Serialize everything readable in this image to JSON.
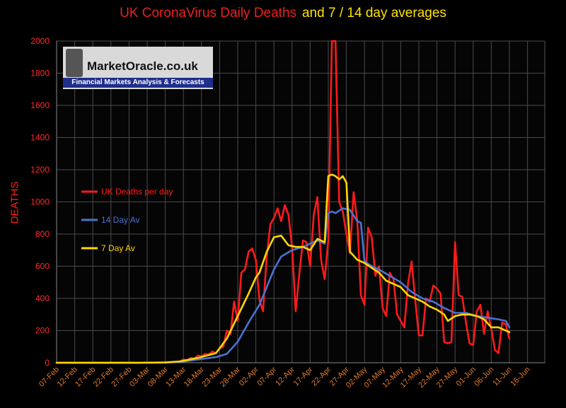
{
  "title": {
    "part1": "UK CoronaVirus Daily Deaths",
    "part2": "and 7 / 14 day averages"
  },
  "logo": {
    "name": "MarketOracle.co.uk",
    "tagline": "Financial Markets Analysis & Forecasts"
  },
  "chart_data": {
    "type": "line",
    "title": "UK CoronaVirus Daily Deaths and 7 / 14 day averages",
    "ylabel": "DEATHS",
    "xlabel": "",
    "ylim": [
      0,
      2000
    ],
    "yticks": [
      0,
      200,
      400,
      600,
      800,
      1000,
      1200,
      1400,
      1600,
      1800,
      2000
    ],
    "x_tick_labels": [
      "07-Feb",
      "12-Feb",
      "17-Feb",
      "22-Feb",
      "27-Feb",
      "03-Mar",
      "08-Mar",
      "13-Mar",
      "18-Mar",
      "23-Mar",
      "28-Mar",
      "02-Apr",
      "07-Apr",
      "12-Apr",
      "17-Apr",
      "22-Apr",
      "27-Apr",
      "02-May",
      "07-May",
      "12-May",
      "17-May",
      "22-May",
      "27-May",
      "01-Jun",
      "06-Jun",
      "11-Jun",
      "16-Jun"
    ],
    "grid": true,
    "legend_placement": "left",
    "colors": {
      "daily": "#ff1a1a",
      "avg14": "#4a72d4",
      "avg7": "#ffd700",
      "axis_text": "#e07a2a",
      "ytick_text": "#ff2a2a"
    },
    "series": [
      {
        "name": "UK Deaths per day",
        "color": "#ff1a1a",
        "points": [
          [
            "07-Feb",
            0
          ],
          [
            "10-Feb",
            0
          ],
          [
            "15-Feb",
            0
          ],
          [
            "20-Feb",
            0
          ],
          [
            "25-Feb",
            0
          ],
          [
            "01-Mar",
            0
          ],
          [
            "05-Mar",
            0
          ],
          [
            "08-Mar",
            1
          ],
          [
            "10-Mar",
            3
          ],
          [
            "12-Mar",
            8
          ],
          [
            "13-Mar",
            20
          ],
          [
            "14-Mar",
            12
          ],
          [
            "15-Mar",
            30
          ],
          [
            "16-Mar",
            25
          ],
          [
            "17-Mar",
            45
          ],
          [
            "18-Mar",
            40
          ],
          [
            "19-Mar",
            55
          ],
          [
            "20-Mar",
            50
          ],
          [
            "21-Mar",
            70
          ],
          [
            "22-Mar",
            60
          ],
          [
            "23-Mar",
            90
          ],
          [
            "24-Mar",
            100
          ],
          [
            "25-Mar",
            200
          ],
          [
            "26-Mar",
            180
          ],
          [
            "27-Mar",
            380
          ],
          [
            "28-Mar",
            260
          ],
          [
            "29-Mar",
            560
          ],
          [
            "30-Mar",
            580
          ],
          [
            "31-Mar",
            690
          ],
          [
            "01-Apr",
            710
          ],
          [
            "02-Apr",
            640
          ],
          [
            "03-Apr",
            390
          ],
          [
            "04-Apr",
            320
          ],
          [
            "05-Apr",
            660
          ],
          [
            "06-Apr",
            860
          ],
          [
            "07-Apr",
            900
          ],
          [
            "08-Apr",
            960
          ],
          [
            "09-Apr",
            880
          ],
          [
            "10-Apr",
            980
          ],
          [
            "11-Apr",
            920
          ],
          [
            "12-Apr",
            720
          ],
          [
            "13-Apr",
            320
          ],
          [
            "14-Apr",
            550
          ],
          [
            "15-Apr",
            760
          ],
          [
            "16-Apr",
            750
          ],
          [
            "17-Apr",
            600
          ],
          [
            "18-Apr",
            920
          ],
          [
            "19-Apr",
            1030
          ],
          [
            "20-Apr",
            640
          ],
          [
            "21-Apr",
            520
          ],
          [
            "22-Apr",
            760
          ],
          [
            "23-Apr",
            2000
          ],
          [
            "24-Apr",
            2000
          ],
          [
            "25-Apr",
            1000
          ],
          [
            "26-Apr",
            940
          ],
          [
            "27-Apr",
            800
          ],
          [
            "28-Apr",
            680
          ],
          [
            "29-Apr",
            1060
          ],
          [
            "30-Apr",
            880
          ],
          [
            "01-May",
            420
          ],
          [
            "02-May",
            360
          ],
          [
            "03-May",
            840
          ],
          [
            "04-May",
            780
          ],
          [
            "05-May",
            540
          ],
          [
            "06-May",
            600
          ],
          [
            "07-May",
            340
          ],
          [
            "08-May",
            290
          ],
          [
            "09-May",
            560
          ],
          [
            "10-May",
            520
          ],
          [
            "11-May",
            300
          ],
          [
            "12-May",
            260
          ],
          [
            "13-May",
            220
          ],
          [
            "14-May",
            490
          ],
          [
            "15-May",
            630
          ],
          [
            "16-May",
            390
          ],
          [
            "17-May",
            170
          ],
          [
            "18-May",
            170
          ],
          [
            "19-May",
            400
          ],
          [
            "20-May",
            380
          ],
          [
            "21-May",
            480
          ],
          [
            "22-May",
            460
          ],
          [
            "23-May",
            430
          ],
          [
            "24-May",
            130
          ],
          [
            "25-May",
            120
          ],
          [
            "26-May",
            130
          ],
          [
            "27-May",
            750
          ],
          [
            "28-May",
            420
          ],
          [
            "29-May",
            410
          ],
          [
            "30-May",
            250
          ],
          [
            "31-May",
            120
          ],
          [
            "01-Jun",
            110
          ],
          [
            "02-Jun",
            320
          ],
          [
            "03-Jun",
            360
          ],
          [
            "04-Jun",
            180
          ],
          [
            "05-Jun",
            320
          ],
          [
            "06-Jun",
            210
          ],
          [
            "07-Jun",
            80
          ],
          [
            "08-Jun",
            60
          ],
          [
            "09-Jun",
            250
          ],
          [
            "10-Jun",
            240
          ],
          [
            "11-Jun",
            150
          ]
        ]
      },
      {
        "name": "14 Day Av",
        "color": "#4a72d4",
        "points": [
          [
            "07-Feb",
            0
          ],
          [
            "01-Mar",
            0
          ],
          [
            "08-Mar",
            1
          ],
          [
            "12-Mar",
            5
          ],
          [
            "17-Mar",
            20
          ],
          [
            "22-Mar",
            35
          ],
          [
            "25-Mar",
            55
          ],
          [
            "28-Mar",
            130
          ],
          [
            "31-Mar",
            250
          ],
          [
            "03-Apr",
            360
          ],
          [
            "05-Apr",
            470
          ],
          [
            "07-Apr",
            580
          ],
          [
            "09-Apr",
            660
          ],
          [
            "12-Apr",
            700
          ],
          [
            "15-Apr",
            720
          ],
          [
            "17-Apr",
            740
          ],
          [
            "19-Apr",
            760
          ],
          [
            "21-Apr",
            740
          ],
          [
            "22-Apr",
            930
          ],
          [
            "23-Apr",
            940
          ],
          [
            "24-Apr",
            930
          ],
          [
            "26-Apr",
            960
          ],
          [
            "28-Apr",
            950
          ],
          [
            "30-Apr",
            880
          ],
          [
            "01-May",
            870
          ],
          [
            "02-May",
            630
          ],
          [
            "04-May",
            600
          ],
          [
            "06-May",
            580
          ],
          [
            "09-May",
            540
          ],
          [
            "12-May",
            500
          ],
          [
            "15-May",
            440
          ],
          [
            "18-May",
            400
          ],
          [
            "21-May",
            380
          ],
          [
            "24-May",
            340
          ],
          [
            "27-May",
            310
          ],
          [
            "30-May",
            310
          ],
          [
            "02-Jun",
            290
          ],
          [
            "05-Jun",
            280
          ],
          [
            "08-Jun",
            270
          ],
          [
            "10-Jun",
            260
          ],
          [
            "11-Jun",
            220
          ]
        ]
      },
      {
        "name": "7 Day Av",
        "color": "#ffd700",
        "points": [
          [
            "07-Feb",
            0
          ],
          [
            "01-Mar",
            0
          ],
          [
            "08-Mar",
            2
          ],
          [
            "12-Mar",
            8
          ],
          [
            "17-Mar",
            30
          ],
          [
            "22-Mar",
            60
          ],
          [
            "25-Mar",
            150
          ],
          [
            "28-Mar",
            290
          ],
          [
            "31-Mar",
            430
          ],
          [
            "02-Apr",
            530
          ],
          [
            "03-Apr",
            560
          ],
          [
            "05-Apr",
            690
          ],
          [
            "07-Apr",
            780
          ],
          [
            "09-Apr",
            790
          ],
          [
            "11-Apr",
            730
          ],
          [
            "13-Apr",
            720
          ],
          [
            "15-Apr",
            720
          ],
          [
            "17-Apr",
            700
          ],
          [
            "19-Apr",
            770
          ],
          [
            "21-Apr",
            750
          ],
          [
            "22-Apr",
            1160
          ],
          [
            "23-Apr",
            1170
          ],
          [
            "24-Apr",
            1160
          ],
          [
            "25-Apr",
            1140
          ],
          [
            "26-Apr",
            1160
          ],
          [
            "27-Apr",
            1120
          ],
          [
            "28-Apr",
            690
          ],
          [
            "30-Apr",
            640
          ],
          [
            "02-May",
            620
          ],
          [
            "04-May",
            590
          ],
          [
            "06-May",
            560
          ],
          [
            "08-May",
            510
          ],
          [
            "10-May",
            490
          ],
          [
            "12-May",
            470
          ],
          [
            "14-May",
            420
          ],
          [
            "16-May",
            400
          ],
          [
            "18-May",
            380
          ],
          [
            "20-May",
            350
          ],
          [
            "22-May",
            330
          ],
          [
            "24-May",
            300
          ],
          [
            "25-May",
            260
          ],
          [
            "27-May",
            290
          ],
          [
            "29-May",
            300
          ],
          [
            "31-May",
            300
          ],
          [
            "02-Jun",
            290
          ],
          [
            "04-Jun",
            270
          ],
          [
            "06-Jun",
            220
          ],
          [
            "08-Jun",
            220
          ],
          [
            "10-Jun",
            200
          ],
          [
            "11-Jun",
            190
          ]
        ]
      }
    ]
  }
}
